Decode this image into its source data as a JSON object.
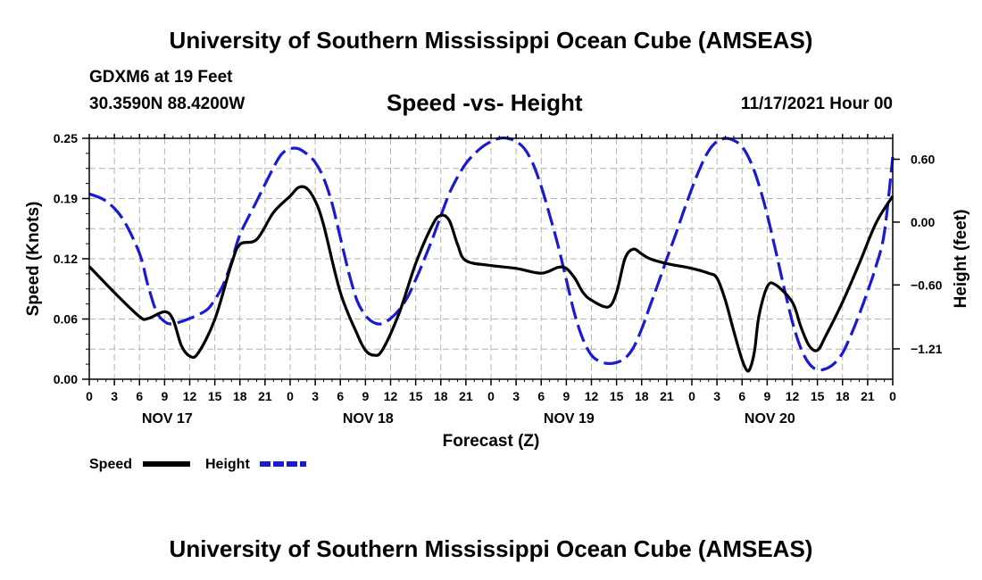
{
  "header": {
    "title": "University of Southern Mississippi Ocean Cube (AMSEAS)",
    "station": "GDXM6 at 19 Feet",
    "coordinates": "30.3590N  88.4200W",
    "chart_title": "Speed -vs- Height",
    "forecast_date": "11/17/2021 Hour 00"
  },
  "footer": {
    "title": "University of Southern Mississippi Ocean Cube (AMSEAS)"
  },
  "chart_data": {
    "type": "line",
    "title": "Speed -vs- Height",
    "xlabel": "Forecast (Z)",
    "ylabel": "Speed (Knots)",
    "y2label": "Height (feet)",
    "x_unit": "hours from 11/17/2021 00Z",
    "xlim": [
      0,
      96
    ],
    "ylim": [
      0,
      0.25
    ],
    "y2lim": [
      -1.5,
      0.8
    ],
    "x_tick_values": [
      0,
      3,
      6,
      9,
      12,
      15,
      18,
      21,
      24,
      27,
      30,
      33,
      36,
      39,
      42,
      45,
      48,
      51,
      54,
      57,
      60,
      63,
      66,
      69,
      72,
      75,
      78,
      81,
      84,
      87,
      90,
      93,
      96
    ],
    "x_tick_labels": [
      "0",
      "3",
      "6",
      "9",
      "12",
      "15",
      "18",
      "21",
      "0",
      "3",
      "6",
      "9",
      "12",
      "15",
      "18",
      "21",
      "0",
      "3",
      "6",
      "9",
      "12",
      "15",
      "18",
      "21",
      "0",
      "3",
      "6",
      "9",
      "12",
      "15",
      "18",
      "21",
      "0"
    ],
    "date_labels": [
      {
        "label": "NOV 17",
        "hour": 9
      },
      {
        "label": "NOV 18",
        "hour": 33
      },
      {
        "label": "NOV 19",
        "hour": 57
      },
      {
        "label": "NOV 20",
        "hour": 81
      }
    ],
    "y_ticks": [
      0,
      0.0625,
      0.125,
      0.1875,
      0.25
    ],
    "y_tick_labels": [
      "0.00",
      "0.06",
      "0.12",
      "0.19",
      "0.25"
    ],
    "y2_ticks": [
      -1.21,
      -0.6,
      0.0,
      0.6
    ],
    "y2_tick_labels": [
      "-1.21",
      "-0.60",
      "0.00",
      "0.60"
    ],
    "grid": true,
    "legend_position": "bottom-left",
    "series": [
      {
        "name": "Speed",
        "axis": "left",
        "color": "#000000",
        "dash": "solid",
        "points": [
          [
            0,
            0.117
          ],
          [
            3,
            0.09
          ],
          [
            6,
            0.065
          ],
          [
            7,
            0.063
          ],
          [
            9,
            0.07
          ],
          [
            10,
            0.062
          ],
          [
            11,
            0.035
          ],
          [
            12,
            0.024
          ],
          [
            13,
            0.027
          ],
          [
            15,
            0.062
          ],
          [
            17,
            0.12
          ],
          [
            18,
            0.14
          ],
          [
            20,
            0.145
          ],
          [
            22,
            0.173
          ],
          [
            24,
            0.19
          ],
          [
            25,
            0.199
          ],
          [
            26,
            0.198
          ],
          [
            27,
            0.185
          ],
          [
            28,
            0.16
          ],
          [
            30,
            0.09
          ],
          [
            32,
            0.047
          ],
          [
            33,
            0.03
          ],
          [
            34,
            0.025
          ],
          [
            35,
            0.03
          ],
          [
            37,
            0.068
          ],
          [
            39,
            0.12
          ],
          [
            41,
            0.16
          ],
          [
            42,
            0.17
          ],
          [
            43,
            0.165
          ],
          [
            44,
            0.14
          ],
          [
            45,
            0.123
          ],
          [
            48,
            0.118
          ],
          [
            51,
            0.115
          ],
          [
            54,
            0.11
          ],
          [
            56,
            0.116
          ],
          [
            57,
            0.115
          ],
          [
            58,
            0.105
          ],
          [
            59,
            0.09
          ],
          [
            60,
            0.082
          ],
          [
            62,
            0.075
          ],
          [
            63,
            0.09
          ],
          [
            64,
            0.125
          ],
          [
            65,
            0.135
          ],
          [
            66,
            0.13
          ],
          [
            67,
            0.125
          ],
          [
            69,
            0.12
          ],
          [
            72,
            0.115
          ],
          [
            74,
            0.11
          ],
          [
            75,
            0.105
          ],
          [
            76,
            0.082
          ],
          [
            77,
            0.05
          ],
          [
            78,
            0.02
          ],
          [
            78.6,
            0.009
          ],
          [
            79,
            0.012
          ],
          [
            79.5,
            0.03
          ],
          [
            80,
            0.065
          ],
          [
            81,
            0.096
          ],
          [
            82,
            0.098
          ],
          [
            84,
            0.08
          ],
          [
            85,
            0.055
          ],
          [
            86,
            0.035
          ],
          [
            87,
            0.03
          ],
          [
            88,
            0.045
          ],
          [
            90,
            0.08
          ],
          [
            92,
            0.12
          ],
          [
            94,
            0.162
          ],
          [
            96,
            0.19
          ]
        ]
      },
      {
        "name": "Height",
        "axis": "right",
        "color": "#1a1ad2",
        "dash": "dashed",
        "points": [
          [
            0,
            0.27
          ],
          [
            2,
            0.2
          ],
          [
            4,
            0.03
          ],
          [
            6,
            -0.3
          ],
          [
            7,
            -0.6
          ],
          [
            8,
            -0.85
          ],
          [
            9,
            -0.95
          ],
          [
            10,
            -0.97
          ],
          [
            12,
            -0.92
          ],
          [
            14,
            -0.84
          ],
          [
            15,
            -0.74
          ],
          [
            16,
            -0.6
          ],
          [
            17,
            -0.38
          ],
          [
            18,
            -0.12
          ],
          [
            20,
            0.2
          ],
          [
            22,
            0.52
          ],
          [
            23,
            0.65
          ],
          [
            24,
            0.7
          ],
          [
            25,
            0.7
          ],
          [
            26,
            0.65
          ],
          [
            27,
            0.57
          ],
          [
            28,
            0.42
          ],
          [
            29,
            0.18
          ],
          [
            30,
            -0.15
          ],
          [
            31,
            -0.48
          ],
          [
            32,
            -0.75
          ],
          [
            33,
            -0.89
          ],
          [
            34,
            -0.96
          ],
          [
            35,
            -0.97
          ],
          [
            36,
            -0.92
          ],
          [
            37,
            -0.84
          ],
          [
            38,
            -0.72
          ],
          [
            39,
            -0.55
          ],
          [
            40,
            -0.36
          ],
          [
            41,
            -0.16
          ],
          [
            42,
            0.06
          ],
          [
            43,
            0.27
          ],
          [
            44,
            0.43
          ],
          [
            45,
            0.56
          ],
          [
            46,
            0.65
          ],
          [
            47,
            0.72
          ],
          [
            48,
            0.77
          ],
          [
            49,
            0.8
          ],
          [
            50,
            0.8
          ],
          [
            51,
            0.77
          ],
          [
            52,
            0.7
          ],
          [
            53,
            0.56
          ],
          [
            54,
            0.34
          ],
          [
            55,
            0.07
          ],
          [
            56,
            -0.22
          ],
          [
            57,
            -0.55
          ],
          [
            58,
            -0.88
          ],
          [
            59,
            -1.12
          ],
          [
            60,
            -1.27
          ],
          [
            61,
            -1.33
          ],
          [
            62,
            -1.35
          ],
          [
            63,
            -1.34
          ],
          [
            64,
            -1.3
          ],
          [
            65,
            -1.2
          ],
          [
            66,
            -1.02
          ],
          [
            67,
            -0.8
          ],
          [
            68,
            -0.58
          ],
          [
            69,
            -0.35
          ],
          [
            70,
            -0.13
          ],
          [
            71,
            0.1
          ],
          [
            72,
            0.32
          ],
          [
            73,
            0.52
          ],
          [
            74,
            0.68
          ],
          [
            75,
            0.77
          ],
          [
            76,
            0.8
          ],
          [
            77,
            0.78
          ],
          [
            78,
            0.72
          ],
          [
            79,
            0.58
          ],
          [
            80,
            0.36
          ],
          [
            81,
            0.07
          ],
          [
            82,
            -0.27
          ],
          [
            83,
            -0.62
          ],
          [
            84,
            -0.95
          ],
          [
            85,
            -1.2
          ],
          [
            86,
            -1.35
          ],
          [
            87,
            -1.41
          ],
          [
            88,
            -1.4
          ],
          [
            89,
            -1.35
          ],
          [
            90,
            -1.25
          ],
          [
            91,
            -1.08
          ],
          [
            92,
            -0.88
          ],
          [
            93,
            -0.66
          ],
          [
            94,
            -0.42
          ],
          [
            95,
            -0.1
          ],
          [
            96,
            0.62
          ]
        ]
      }
    ]
  }
}
